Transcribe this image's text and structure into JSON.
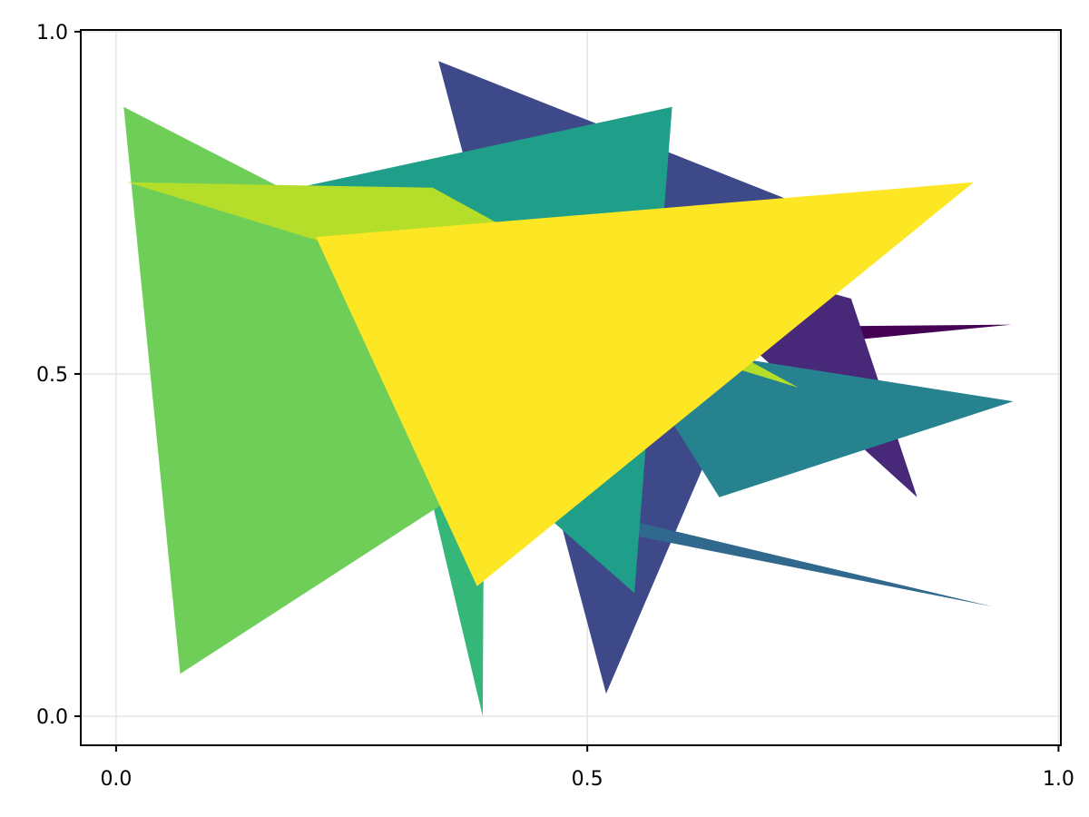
{
  "chart_data": {
    "type": "polygon",
    "title": "",
    "xlabel": "",
    "ylabel": "",
    "xlim": [
      -0.0375,
      1.0025
    ],
    "ylim": [
      -0.0425,
      1.0025
    ],
    "grid": true,
    "x_ticks": [
      {
        "value": 0.0,
        "label": "0.0"
      },
      {
        "value": 0.5,
        "label": "0.5"
      },
      {
        "value": 1.0,
        "label": "1.0"
      }
    ],
    "y_ticks": [
      {
        "value": 0.0,
        "label": "0.0"
      },
      {
        "value": 0.5,
        "label": "0.5"
      },
      {
        "value": 1.0,
        "label": "1.0"
      }
    ],
    "series": [
      {
        "color": "#440154",
        "points": [
          [
            0.26,
            0.48
          ],
          [
            0.79,
            0.57
          ],
          [
            0.95,
            0.572
          ]
        ]
      },
      {
        "color": "#482878",
        "points": [
          [
            0.545,
            0.7
          ],
          [
            0.85,
            0.32
          ],
          [
            0.78,
            0.61
          ]
        ]
      },
      {
        "color": "#3e4989",
        "points": [
          [
            0.342,
            0.957
          ],
          [
            0.52,
            0.033
          ],
          [
            0.74,
            0.74
          ]
        ]
      },
      {
        "color": "#31688e",
        "points": [
          [
            0.41,
            0.33
          ],
          [
            0.93,
            0.16
          ],
          [
            0.49,
            0.28
          ]
        ]
      },
      {
        "color": "#26828e",
        "points": [
          [
            0.535,
            0.55
          ],
          [
            0.952,
            0.46
          ],
          [
            0.64,
            0.32
          ]
        ]
      },
      {
        "color": "#1f9e89",
        "points": [
          [
            0.085,
            0.74
          ],
          [
            0.59,
            0.89
          ],
          [
            0.55,
            0.18
          ]
        ]
      },
      {
        "color": "#35b779",
        "points": [
          [
            0.31,
            0.46
          ],
          [
            0.39,
            0.24
          ],
          [
            0.389,
            0.0
          ]
        ]
      },
      {
        "color": "#6ece58",
        "points": [
          [
            0.008,
            0.89
          ],
          [
            0.068,
            0.062
          ],
          [
            0.56,
            0.5
          ]
        ]
      },
      {
        "color": "#b5de2b",
        "points": [
          [
            0.012,
            0.78
          ],
          [
            0.336,
            0.772
          ],
          [
            0.724,
            0.48
          ]
        ]
      },
      {
        "color": "#fde725",
        "points": [
          [
            0.212,
            0.7
          ],
          [
            0.91,
            0.78
          ],
          [
            0.383,
            0.19
          ]
        ]
      }
    ]
  }
}
